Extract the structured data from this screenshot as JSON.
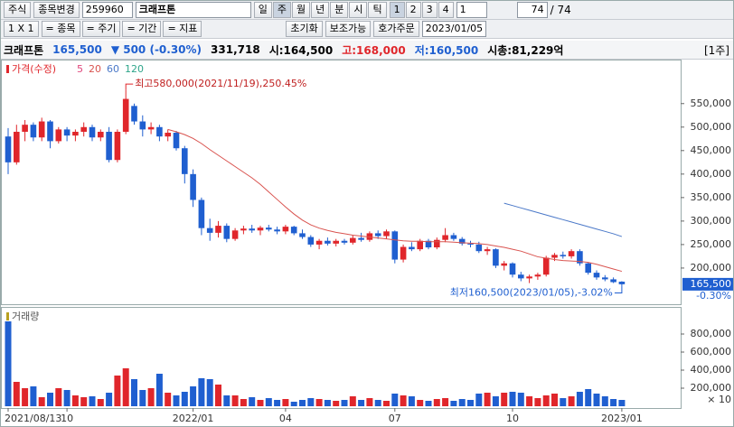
{
  "ui": {
    "toolbar1": {
      "market": "주식",
      "change": "종목변경",
      "code": "259960",
      "name": "크래프톤",
      "periods": [
        "일",
        "주",
        "월",
        "년",
        "분",
        "시",
        "틱"
      ],
      "nums": [
        "1",
        "2",
        "3",
        "4"
      ],
      "unit": "1",
      "count": "74",
      "total": "/ 74"
    },
    "toolbar2": {
      "layout": "1 X 1",
      "buttons": [
        "= 종목",
        "= 주기",
        "= 기간",
        "= 지표"
      ],
      "reset": "초기화",
      "aux": "보조가능",
      "order": "호가주문",
      "date": "2023/01/05"
    },
    "header": {
      "name": "크래프톤",
      "price": "165,500",
      "change": "▼ 500 (-0.30%)",
      "volume": "331,718",
      "open": "시:164,500",
      "high": "고:168,000",
      "low": "저:160,500",
      "cap": "시총:81,229억",
      "unit": "[1주]"
    }
  },
  "chart_data": [
    {
      "type": "candlestick",
      "name": "가격(수정)",
      "open": [
        480000,
        425000,
        490000,
        505000,
        478000,
        512000,
        470000,
        495000,
        482000,
        490000,
        500000,
        478000,
        490000,
        430000,
        490000,
        545000,
        512000,
        495000,
        500000,
        480000,
        488000,
        455000,
        400000,
        345000,
        285000,
        275000,
        290000,
        262000,
        280000,
        284000,
        280000,
        286000,
        282000,
        278000,
        288000,
        274000,
        266000,
        250000,
        258000,
        252000,
        258000,
        254000,
        264000,
        260000,
        274000,
        268000,
        278000,
        218000,
        245000,
        240000,
        258000,
        244000,
        260000,
        270000,
        262000,
        252000,
        250000,
        236000,
        240000,
        205000,
        210000,
        186000,
        178000,
        182000,
        186000,
        222000,
        228000,
        225000,
        236000,
        210000,
        190000,
        180000,
        176000,
        171000
      ],
      "high": [
        498000,
        505000,
        515000,
        510000,
        520000,
        515000,
        500000,
        500000,
        495000,
        510000,
        505000,
        495000,
        500000,
        495000,
        580000,
        550000,
        525000,
        510000,
        505000,
        495000,
        492000,
        460000,
        410000,
        350000,
        305000,
        300000,
        295000,
        285000,
        290000,
        292000,
        290000,
        292000,
        288000,
        292000,
        290000,
        282000,
        270000,
        262000,
        265000,
        262000,
        262000,
        270000,
        275000,
        278000,
        280000,
        282000,
        280000,
        250000,
        255000,
        262000,
        262000,
        265000,
        285000,
        275000,
        266000,
        258000,
        256000,
        245000,
        242000,
        215000,
        212000,
        192000,
        186000,
        190000,
        226000,
        232000,
        235000,
        240000,
        240000,
        212000,
        195000,
        185000,
        180000,
        172000
      ],
      "low": [
        400000,
        420000,
        470000,
        470000,
        470000,
        455000,
        465000,
        470000,
        470000,
        480000,
        470000,
        470000,
        425000,
        425000,
        485000,
        505000,
        480000,
        485000,
        470000,
        470000,
        450000,
        380000,
        330000,
        270000,
        258000,
        265000,
        255000,
        258000,
        272000,
        275000,
        270000,
        278000,
        272000,
        272000,
        270000,
        262000,
        245000,
        240000,
        248000,
        246000,
        250000,
        250000,
        256000,
        256000,
        262000,
        262000,
        210000,
        212000,
        236000,
        236000,
        240000,
        240000,
        255000,
        258000,
        248000,
        244000,
        232000,
        228000,
        200000,
        195000,
        180000,
        172000,
        168000,
        175000,
        182000,
        215000,
        220000,
        220000,
        205000,
        186000,
        175000,
        172000,
        168000,
        160500
      ],
      "close": [
        425000,
        490000,
        505000,
        478000,
        512000,
        470000,
        495000,
        482000,
        490000,
        500000,
        478000,
        490000,
        430000,
        490000,
        560000,
        512000,
        495000,
        500000,
        480000,
        488000,
        455000,
        400000,
        345000,
        285000,
        275000,
        290000,
        262000,
        280000,
        284000,
        280000,
        286000,
        282000,
        278000,
        288000,
        274000,
        266000,
        250000,
        258000,
        252000,
        258000,
        254000,
        264000,
        260000,
        274000,
        268000,
        278000,
        218000,
        245000,
        240000,
        258000,
        244000,
        260000,
        270000,
        262000,
        252000,
        250000,
        236000,
        240000,
        205000,
        210000,
        186000,
        178000,
        182000,
        186000,
        222000,
        228000,
        225000,
        236000,
        210000,
        190000,
        180000,
        176000,
        170000,
        165500
      ],
      "up_color": "#e0262b",
      "down_color": "#1f5fd0",
      "series": [
        {
          "name": "5",
          "color": "#e0457b"
        },
        {
          "name": "20",
          "color": "#d9534f",
          "values": [
            null,
            null,
            null,
            null,
            null,
            null,
            null,
            null,
            null,
            null,
            null,
            null,
            null,
            null,
            null,
            null,
            null,
            null,
            null,
            495000,
            490000,
            484000,
            476000,
            465000,
            452000,
            440000,
            428000,
            416000,
            404000,
            392000,
            378000,
            362000,
            346000,
            330000,
            315000,
            302000,
            292000,
            285000,
            280000,
            276000,
            273000,
            270000,
            268000,
            266000,
            264000,
            262000,
            260000,
            258000,
            257000,
            257000,
            256000,
            256000,
            256000,
            255000,
            254000,
            253000,
            252000,
            250000,
            247000,
            244000,
            240000,
            236000,
            230000,
            224000,
            221000,
            218000,
            216000,
            215000,
            214000,
            212000,
            208000,
            203000,
            198000,
            193000
          ]
        },
        {
          "name": "60",
          "color": "#4a78c8",
          "values": [
            null,
            null,
            null,
            null,
            null,
            null,
            null,
            null,
            null,
            null,
            null,
            null,
            null,
            null,
            null,
            null,
            null,
            null,
            null,
            null,
            null,
            null,
            null,
            null,
            null,
            null,
            null,
            null,
            null,
            null,
            null,
            null,
            null,
            null,
            null,
            null,
            null,
            null,
            null,
            null,
            null,
            null,
            null,
            null,
            null,
            null,
            null,
            null,
            null,
            null,
            null,
            null,
            null,
            null,
            null,
            null,
            null,
            null,
            null,
            338000,
            333000,
            328000,
            323000,
            318000,
            313000,
            308000,
            303000,
            298000,
            293000,
            288000,
            283000,
            278000,
            273000,
            267000
          ]
        },
        {
          "name": "120",
          "color": "#2ea58a"
        }
      ],
      "ylim": [
        123000,
        636000
      ],
      "yticks": [
        {
          "value": 200000,
          "label": "200,000"
        },
        {
          "value": 250000,
          "label": "250,000"
        },
        {
          "value": 300000,
          "label": "300,000"
        },
        {
          "value": 350000,
          "label": "350,000"
        },
        {
          "value": 400000,
          "label": "400,000"
        },
        {
          "value": 450000,
          "label": "450,000"
        },
        {
          "value": 500000,
          "label": "500,000"
        },
        {
          "value": 550000,
          "label": "550,000"
        }
      ],
      "annotations": [
        "최고580,000(2021/11/19),250.45%",
        "최저160,500(2023/01/05),-3.02%"
      ],
      "last_label": "165,500",
      "last_change": "-0.30%"
    },
    {
      "type": "bar",
      "title": "거래량",
      "categories": [
        "2021/08/13",
        null,
        null,
        null,
        null,
        null,
        null,
        "10",
        null,
        null,
        null,
        null,
        null,
        null,
        null,
        null,
        null,
        null,
        null,
        null,
        null,
        null,
        "2022/01",
        null,
        null,
        null,
        null,
        null,
        null,
        null,
        null,
        null,
        null,
        "04",
        null,
        null,
        null,
        null,
        null,
        null,
        null,
        null,
        null,
        null,
        null,
        null,
        "07",
        null,
        null,
        null,
        null,
        null,
        null,
        null,
        null,
        null,
        null,
        null,
        null,
        null,
        "10",
        null,
        null,
        null,
        null,
        null,
        null,
        null,
        null,
        null,
        null,
        null,
        null,
        "2023/01"
      ],
      "values": [
        940000,
        270000,
        200000,
        220000,
        100000,
        150000,
        200000,
        180000,
        120000,
        100000,
        110000,
        80000,
        150000,
        340000,
        420000,
        300000,
        180000,
        200000,
        360000,
        150000,
        120000,
        160000,
        220000,
        310000,
        300000,
        240000,
        120000,
        120000,
        80000,
        100000,
        70000,
        90000,
        70000,
        80000,
        50000,
        70000,
        90000,
        80000,
        70000,
        60000,
        70000,
        110000,
        70000,
        90000,
        70000,
        60000,
        140000,
        120000,
        110000,
        70000,
        60000,
        80000,
        90000,
        60000,
        80000,
        70000,
        140000,
        150000,
        110000,
        150000,
        160000,
        150000,
        110000,
        90000,
        120000,
        140000,
        90000,
        110000,
        160000,
        190000,
        140000,
        110000,
        80000,
        70000
      ],
      "ylim": [
        0,
        1080000
      ],
      "yticks": [
        {
          "value": 200000,
          "label": "200,000"
        },
        {
          "value": 400000,
          "label": "400,000"
        },
        {
          "value": 600000,
          "label": "600,000"
        },
        {
          "value": 800000,
          "label": "800,000"
        }
      ],
      "unit_note": "× 10"
    }
  ]
}
